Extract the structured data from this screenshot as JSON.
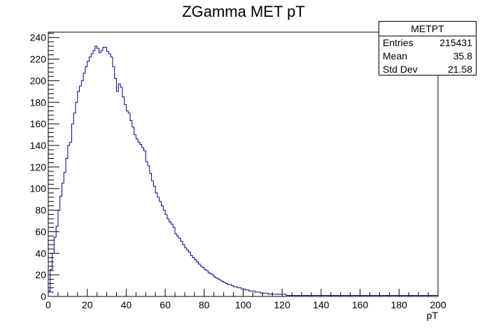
{
  "chart_data": {
    "type": "histogram",
    "title": "ZGamma MET pT",
    "xlabel": "pT",
    "ylabel": "",
    "xlim": [
      0,
      200
    ],
    "ylim": [
      0,
      245
    ],
    "bin_width": 1,
    "x_ticks": [
      0,
      20,
      40,
      60,
      80,
      100,
      120,
      140,
      160,
      180,
      200
    ],
    "y_ticks": [
      0,
      20,
      40,
      60,
      80,
      100,
      120,
      140,
      160,
      180,
      200,
      220,
      240
    ],
    "line_color": "#000080",
    "grid": false,
    "legend": "stats box, top-right",
    "series": [
      {
        "values": [
          5,
          25,
          40,
          55,
          65,
          80,
          93,
          105,
          115,
          128,
          140,
          143,
          160,
          170,
          180,
          190,
          195,
          200,
          207,
          213,
          218,
          222,
          225,
          228,
          232,
          230,
          226,
          228,
          231,
          231,
          227,
          225,
          222,
          213,
          202,
          190,
          197,
          194,
          185,
          178,
          172,
          170,
          163,
          157,
          150,
          146,
          143,
          141,
          138,
          135,
          125,
          121,
          114,
          107,
          102,
          96,
          92,
          88,
          84,
          80,
          76,
          72,
          69,
          67,
          64,
          58,
          56,
          54,
          51,
          48,
          45,
          43,
          41,
          38,
          36,
          34,
          32,
          30,
          28,
          27,
          25,
          24,
          22,
          21,
          20,
          18,
          17,
          16,
          15,
          14,
          13,
          12,
          11,
          11,
          10,
          9,
          9,
          8,
          8,
          7,
          7,
          6,
          6,
          5,
          5,
          5,
          4,
          4,
          4,
          3,
          3,
          3,
          3,
          2,
          2,
          2,
          2,
          2,
          2,
          2,
          2,
          2,
          1,
          1,
          1,
          1,
          1,
          1,
          1,
          1,
          1,
          1,
          1,
          1,
          1,
          1,
          1,
          1,
          1,
          1,
          1,
          1,
          1,
          1,
          1,
          1,
          1,
          1,
          1,
          1,
          1,
          1,
          1,
          1,
          1,
          1,
          1,
          1,
          1,
          1,
          1,
          1,
          1,
          1,
          1,
          1,
          1,
          1,
          1,
          1,
          1,
          1,
          1,
          1,
          1,
          1,
          1,
          1,
          1,
          1,
          1,
          1,
          1,
          1,
          1,
          1,
          1,
          1,
          1,
          1,
          1,
          1,
          1,
          1,
          1,
          1,
          1,
          1,
          1,
          1
        ]
      }
    ]
  },
  "stats": {
    "title": "METPT",
    "rows": [
      {
        "label": "Entries",
        "value": "215431"
      },
      {
        "label": "Mean",
        "value": "35.8"
      },
      {
        "label": "Std Dev",
        "value": "21.58"
      }
    ]
  }
}
